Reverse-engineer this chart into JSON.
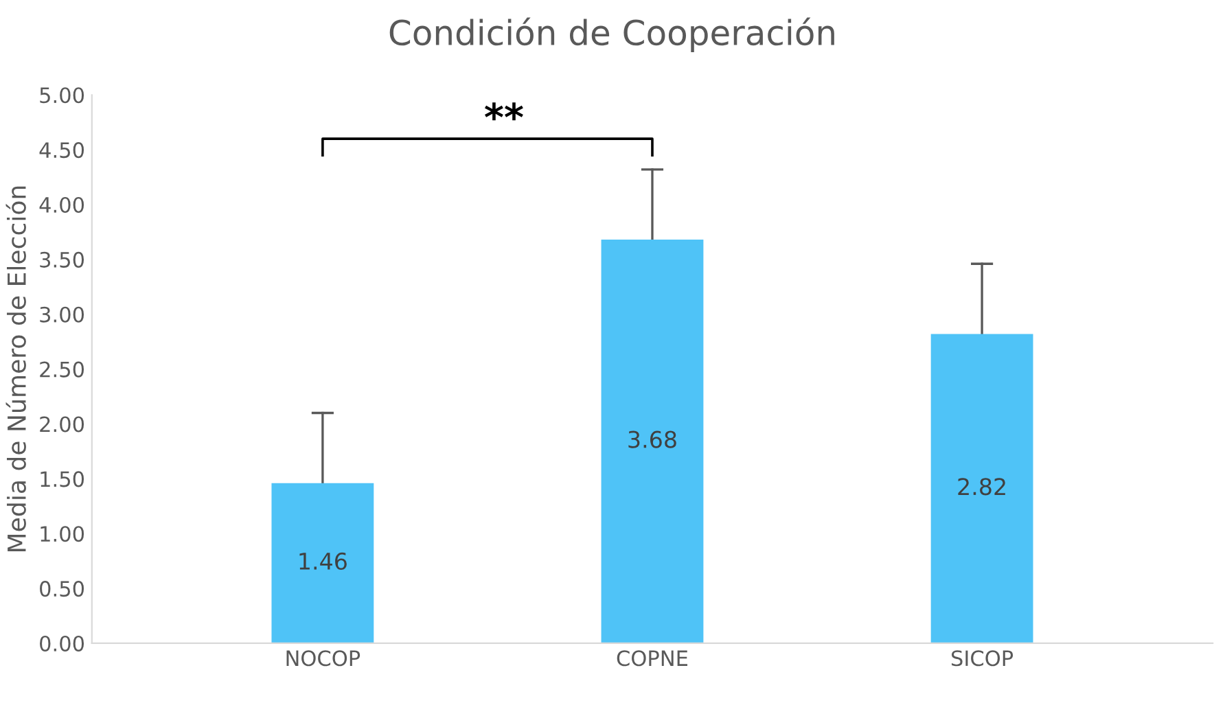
{
  "chart_data": {
    "type": "bar",
    "title": "Condición de Cooperación",
    "ylabel": "Media de Número de Elección",
    "categories": [
      "NOCOP",
      "COPNE",
      "SICOP"
    ],
    "values": [
      1.46,
      3.68,
      2.82
    ],
    "color": "#4fc3f7",
    "errors": [
      [
        1.46,
        2.1
      ],
      [
        3.68,
        4.32
      ],
      [
        2.82,
        3.46
      ]
    ],
    "data_labels": true,
    "annotations": [
      "**"
    ],
    "ylim": [
      0,
      5
    ],
    "yticks": [
      {
        "value": 0,
        "label": "0.00"
      },
      {
        "value": 0.5,
        "label": "0.50"
      },
      {
        "value": 1,
        "label": "1.00"
      },
      {
        "value": 1.5,
        "label": "1.50"
      },
      {
        "value": 2,
        "label": "2.00"
      },
      {
        "value": 2.5,
        "label": "2.50"
      },
      {
        "value": 3,
        "label": "3.00"
      },
      {
        "value": 3.5,
        "label": "3.50"
      },
      {
        "value": 4,
        "label": "4.00"
      },
      {
        "value": 4.5,
        "label": "4.50"
      },
      {
        "value": 5,
        "label": "5.00"
      }
    ],
    "grid": false,
    "legend": false
  }
}
